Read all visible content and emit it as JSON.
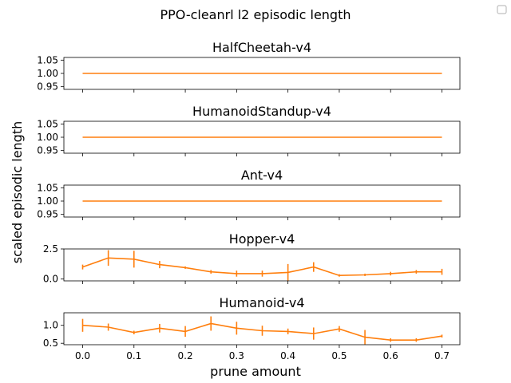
{
  "figure": {
    "suptitle": "PPO-cleanrl l2 episodic length",
    "xlabel": "prune amount",
    "ylabel": "scaled episodic length",
    "line_color": "#ff7f0e",
    "legend": "empty box, top-right"
  },
  "chart_data": [
    {
      "type": "line",
      "title": "HalfCheetah-v4",
      "x": [
        0.0,
        0.05,
        0.1,
        0.15,
        0.2,
        0.25,
        0.3,
        0.35,
        0.4,
        0.45,
        0.5,
        0.55,
        0.6,
        0.65,
        0.7
      ],
      "y": [
        1.0,
        1.0,
        1.0,
        1.0,
        1.0,
        1.0,
        1.0,
        1.0,
        1.0,
        1.0,
        1.0,
        1.0,
        1.0,
        1.0,
        1.0
      ],
      "err": [
        0,
        0,
        0,
        0,
        0,
        0,
        0,
        0,
        0,
        0,
        0,
        0,
        0,
        0,
        0
      ],
      "ylim": [
        0.94,
        1.06
      ],
      "yticks": [
        0.95,
        1.0,
        1.05
      ],
      "ytick_labels": [
        "0.95",
        "1.00",
        "1.05"
      ],
      "xticklabels_shown": false
    },
    {
      "type": "line",
      "title": "HumanoidStandup-v4",
      "x": [
        0.0,
        0.05,
        0.1,
        0.15,
        0.2,
        0.25,
        0.3,
        0.35,
        0.4,
        0.45,
        0.5,
        0.55,
        0.6,
        0.65,
        0.7
      ],
      "y": [
        1.0,
        1.0,
        1.0,
        1.0,
        1.0,
        1.0,
        1.0,
        1.0,
        1.0,
        1.0,
        1.0,
        1.0,
        1.0,
        1.0,
        1.0
      ],
      "err": [
        0,
        0,
        0,
        0,
        0,
        0,
        0,
        0,
        0,
        0,
        0,
        0,
        0,
        0,
        0
      ],
      "ylim": [
        0.94,
        1.06
      ],
      "yticks": [
        0.95,
        1.0,
        1.05
      ],
      "ytick_labels": [
        "0.95",
        "1.00",
        "1.05"
      ],
      "xticklabels_shown": false
    },
    {
      "type": "line",
      "title": "Ant-v4",
      "x": [
        0.0,
        0.05,
        0.1,
        0.15,
        0.2,
        0.25,
        0.3,
        0.35,
        0.4,
        0.45,
        0.5,
        0.55,
        0.6,
        0.65,
        0.7
      ],
      "y": [
        1.0,
        1.0,
        1.0,
        1.0,
        1.0,
        1.0,
        1.0,
        1.0,
        1.0,
        1.0,
        1.0,
        1.0,
        1.0,
        1.0,
        1.0
      ],
      "err": [
        0,
        0,
        0,
        0,
        0,
        0,
        0,
        0,
        0,
        0,
        0,
        0,
        0,
        0,
        0
      ],
      "ylim": [
        0.94,
        1.06
      ],
      "yticks": [
        0.95,
        1.0,
        1.05
      ],
      "ytick_labels": [
        "0.95",
        "1.00",
        "1.05"
      ],
      "xticklabels_shown": false
    },
    {
      "type": "line",
      "title": "Hopper-v4",
      "x": [
        0.0,
        0.05,
        0.1,
        0.15,
        0.2,
        0.25,
        0.3,
        0.35,
        0.4,
        0.45,
        0.5,
        0.55,
        0.6,
        0.65,
        0.7
      ],
      "y": [
        1.0,
        1.75,
        1.65,
        1.2,
        0.95,
        0.6,
        0.45,
        0.45,
        0.55,
        1.0,
        0.3,
        0.35,
        0.45,
        0.6,
        0.6
      ],
      "err": [
        0.2,
        0.65,
        0.7,
        0.3,
        0.1,
        0.15,
        0.25,
        0.25,
        0.7,
        0.4,
        0.1,
        0.1,
        0.15,
        0.15,
        0.25
      ],
      "ylim": [
        -0.15,
        2.5
      ],
      "yticks": [
        0.0,
        2.5
      ],
      "ytick_labels": [
        "0.0",
        "2.5"
      ],
      "xticklabels_shown": false
    },
    {
      "type": "line",
      "title": "Humanoid-v4",
      "x": [
        0.0,
        0.05,
        0.1,
        0.15,
        0.2,
        0.25,
        0.3,
        0.35,
        0.4,
        0.45,
        0.5,
        0.55,
        0.6,
        0.65,
        0.7
      ],
      "y": [
        1.0,
        0.95,
        0.8,
        0.92,
        0.83,
        1.05,
        0.92,
        0.85,
        0.83,
        0.77,
        0.9,
        0.67,
        0.59,
        0.59,
        0.7
      ],
      "err": [
        0.18,
        0.1,
        0.05,
        0.12,
        0.15,
        0.2,
        0.18,
        0.14,
        0.08,
        0.17,
        0.08,
        0.2,
        0.05,
        0.05,
        0.04
      ],
      "ylim": [
        0.46,
        1.35
      ],
      "yticks": [
        0.5,
        1.0
      ],
      "ytick_labels": [
        "0.5",
        "1.0"
      ],
      "xticks": [
        0.0,
        0.1,
        0.2,
        0.3,
        0.4,
        0.5,
        0.6,
        0.7
      ],
      "xtick_labels": [
        "0.0",
        "0.1",
        "0.2",
        "0.3",
        "0.4",
        "0.5",
        "0.6",
        "0.7"
      ],
      "xticklabels_shown": true
    }
  ]
}
